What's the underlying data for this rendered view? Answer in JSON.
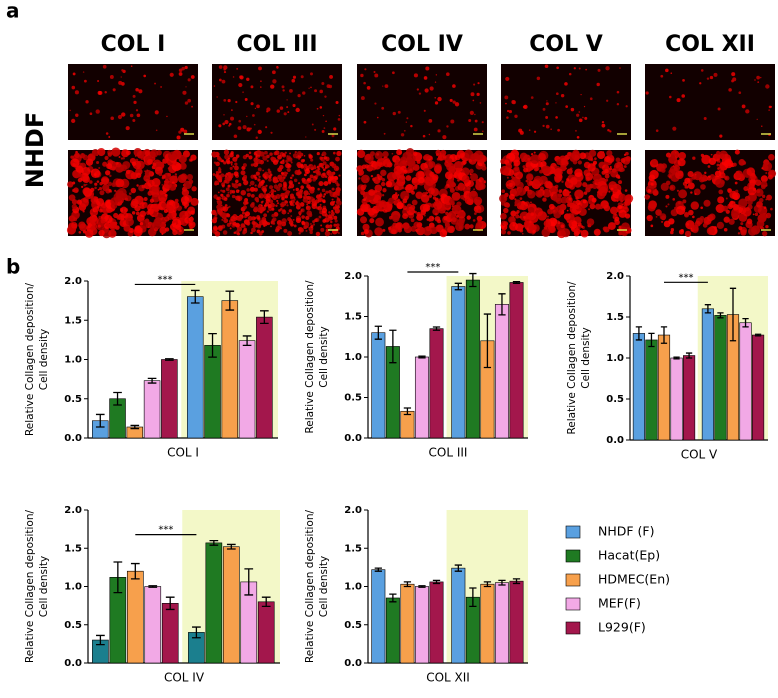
{
  "panel_a": {
    "label": "a",
    "columns": [
      "COL I",
      "COL III",
      "COL IV",
      "COL V",
      "COL XII"
    ],
    "row_label": "NHDF"
  },
  "panel_b": {
    "label": "b"
  },
  "chart_data": [
    {
      "type": "bar",
      "title": "COL I",
      "ylabel": [
        "Relative Collagen deposition/",
        "Cell density"
      ],
      "annotation": "***",
      "ylim": [
        0,
        2
      ],
      "yticks": [
        {
          "value": 0,
          "label": "0.0"
        },
        {
          "value": 0.5,
          "label": "0.5"
        },
        {
          "value": 1,
          "label": "1.0"
        },
        {
          "value": 1.5,
          "label": "1.5"
        },
        {
          "value": 2,
          "label": "2.0"
        }
      ],
      "series": [
        {
          "color": "#5aa0e0",
          "values": [
            0.22,
            1.8
          ],
          "errors": [
            0.08,
            0.08
          ]
        },
        {
          "color": "#1f7a22",
          "values": [
            0.5,
            1.18
          ],
          "errors": [
            0.08,
            0.15
          ]
        },
        {
          "color": "#f7a04c",
          "values": [
            0.14,
            1.75
          ],
          "errors": [
            0.02,
            0.12
          ]
        },
        {
          "color": "#f2a9e6",
          "values": [
            0.73,
            1.24
          ],
          "errors": [
            0.03,
            0.06
          ]
        },
        {
          "color": "#a3174c",
          "values": [
            1.0,
            1.54
          ],
          "errors": [
            0.01,
            0.08
          ]
        }
      ]
    },
    {
      "type": "bar",
      "title": "COL III",
      "ylabel": [
        "Relative Collagen deposition/",
        "Cell density"
      ],
      "annotation": "***",
      "ylim": [
        0,
        2
      ],
      "yticks": [
        {
          "value": 0,
          "label": "0.0"
        },
        {
          "value": 0.5,
          "label": "0.5"
        },
        {
          "value": 1,
          "label": "1.0"
        },
        {
          "value": 1.5,
          "label": "1.5"
        },
        {
          "value": 2,
          "label": "2.0"
        }
      ],
      "series": [
        {
          "color": "#5aa0e0",
          "values": [
            1.3,
            1.87
          ],
          "errors": [
            0.08,
            0.04
          ]
        },
        {
          "color": "#1f7a22",
          "values": [
            1.13,
            1.95
          ],
          "errors": [
            0.2,
            0.08
          ]
        },
        {
          "color": "#f7a04c",
          "values": [
            0.33,
            1.2
          ],
          "errors": [
            0.04,
            0.33
          ]
        },
        {
          "color": "#f2a9e6",
          "values": [
            1.0,
            1.65
          ],
          "errors": [
            0.01,
            0.13
          ]
        },
        {
          "color": "#a3174c",
          "values": [
            1.35,
            1.92
          ],
          "errors": [
            0.02,
            0.01
          ]
        }
      ]
    },
    {
      "type": "bar",
      "title": "COL V",
      "ylabel": [
        "Relative Collagen deposition/",
        "Cell density"
      ],
      "annotation": "***",
      "ylim": [
        0,
        2
      ],
      "yticks": [
        {
          "value": 0,
          "label": "0.0"
        },
        {
          "value": 0.5,
          "label": "0.5"
        },
        {
          "value": 1,
          "label": "1.0"
        },
        {
          "value": 1.5,
          "label": "1.5"
        },
        {
          "value": 2,
          "label": "2.0"
        }
      ],
      "series": [
        {
          "color": "#5aa0e0",
          "values": [
            1.3,
            1.6
          ],
          "errors": [
            0.08,
            0.05
          ]
        },
        {
          "color": "#1f7a22",
          "values": [
            1.22,
            1.52
          ],
          "errors": [
            0.08,
            0.03
          ]
        },
        {
          "color": "#f7a04c",
          "values": [
            1.28,
            1.53
          ],
          "errors": [
            0.1,
            0.32
          ]
        },
        {
          "color": "#f2a9e6",
          "values": [
            1.0,
            1.43
          ],
          "errors": [
            0.01,
            0.05
          ]
        },
        {
          "color": "#a3174c",
          "values": [
            1.03,
            1.28
          ],
          "errors": [
            0.03,
            0.01
          ]
        }
      ]
    },
    {
      "type": "bar",
      "title": "COL IV",
      "ylabel": [
        "Relative Collagen deposition/",
        "Cell density"
      ],
      "annotation": "***",
      "ylim": [
        0,
        2
      ],
      "yticks": [
        {
          "value": 0,
          "label": "0.0"
        },
        {
          "value": 0.5,
          "label": "0.5"
        },
        {
          "value": 1,
          "label": "1.0"
        },
        {
          "value": 1.5,
          "label": "1.5"
        },
        {
          "value": 2,
          "label": "2.0"
        }
      ],
      "series": [
        {
          "color": "#1b7f8e",
          "values": [
            0.3,
            0.4
          ],
          "errors": [
            0.06,
            0.07
          ]
        },
        {
          "color": "#1f7a22",
          "values": [
            1.12,
            1.57
          ],
          "errors": [
            0.2,
            0.03
          ]
        },
        {
          "color": "#f7a04c",
          "values": [
            1.2,
            1.52
          ],
          "errors": [
            0.1,
            0.03
          ]
        },
        {
          "color": "#f2a9e6",
          "values": [
            1.0,
            1.06
          ],
          "errors": [
            0.01,
            0.17
          ]
        },
        {
          "color": "#a3174c",
          "values": [
            0.78,
            0.8
          ],
          "errors": [
            0.08,
            0.06
          ]
        }
      ]
    },
    {
      "type": "bar",
      "title": "COL XII",
      "ylabel": [
        "Relative Collagen deposition/",
        "Cell density"
      ],
      "ylim": [
        0,
        2
      ],
      "yticks": [
        {
          "value": 0,
          "label": "0.0"
        },
        {
          "value": 0.5,
          "label": "0.5"
        },
        {
          "value": 1,
          "label": "1.0"
        },
        {
          "value": 1.5,
          "label": "1.5"
        },
        {
          "value": 2,
          "label": "2.0"
        }
      ],
      "series": [
        {
          "name": "NHDF (F)",
          "color": "#5aa0e0",
          "values": [
            1.22,
            1.24
          ],
          "errors": [
            0.02,
            0.04
          ]
        },
        {
          "name": "Hacat(Ep)",
          "color": "#1f7a22",
          "values": [
            0.85,
            0.86
          ],
          "errors": [
            0.05,
            0.12
          ]
        },
        {
          "name": "HDMEC(En)",
          "color": "#f7a04c",
          "values": [
            1.03,
            1.03
          ],
          "errors": [
            0.03,
            0.03
          ]
        },
        {
          "name": "MEF(F)",
          "color": "#f2a9e6",
          "values": [
            1.0,
            1.05
          ],
          "errors": [
            0.01,
            0.03
          ]
        },
        {
          "name": "L929(F)",
          "color": "#a3174c",
          "values": [
            1.06,
            1.07
          ],
          "errors": [
            0.02,
            0.03
          ]
        }
      ]
    }
  ]
}
